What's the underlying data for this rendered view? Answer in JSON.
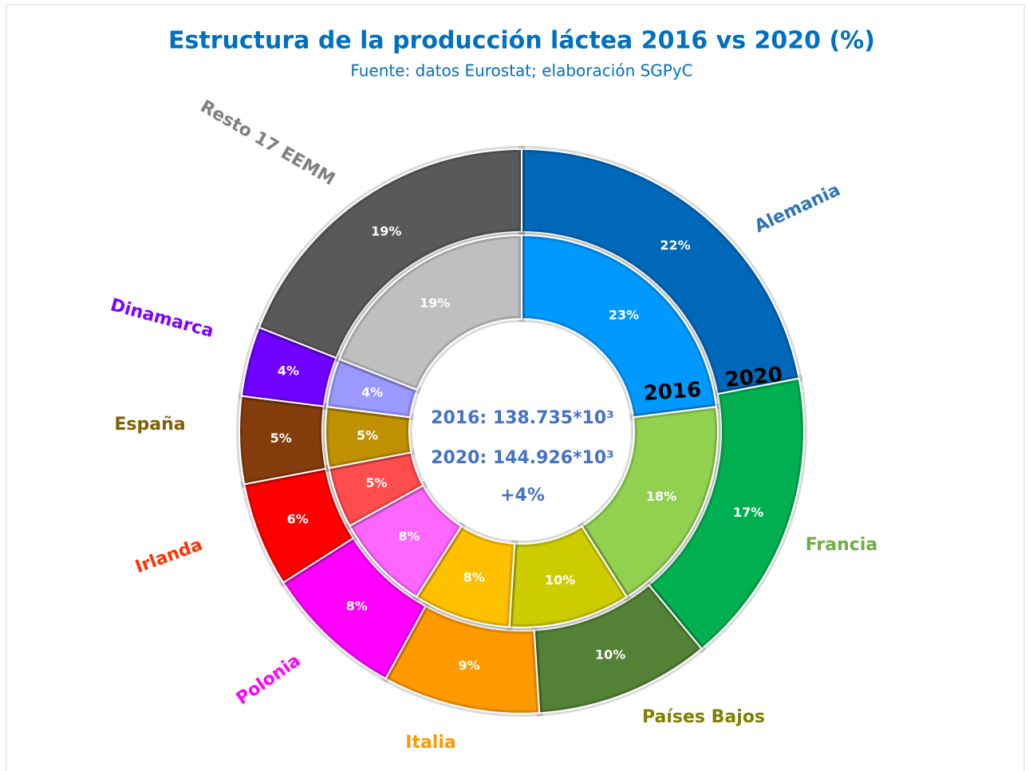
{
  "chart_data": {
    "type": "doughnut",
    "title": "Estructura de la producción láctea 2016 vs 2020 (%)",
    "subtitle": "Fuente: datos Eurostat; elaboración SGPyC",
    "categories": [
      "Alemania",
      "Francia",
      "Países Bajos",
      "Italia",
      "Polonia",
      "Irlanda",
      "España",
      "Dinamarca",
      "Resto 17 EEMM"
    ],
    "category_colors": [
      "#2e75b6",
      "#70ad47",
      "#7f7f00",
      "#ff9900",
      "#ff00ff",
      "#ff3300",
      "#806000",
      "#7f00ff",
      "#808080"
    ],
    "series": [
      {
        "name": "2020",
        "values": [
          22,
          17,
          10,
          9,
          8,
          6,
          5,
          4,
          19
        ],
        "value_labels": [
          "22%",
          "17%",
          "10%",
          "9%",
          "8%",
          "6%",
          "5%",
          "4%",
          "19%"
        ],
        "colors": [
          "#0068b8",
          "#00b050",
          "#538135",
          "#ff9900",
          "#ff00ff",
          "#ff0000",
          "#843c0c",
          "#7000ff",
          "#595959"
        ]
      },
      {
        "name": "2016",
        "values": [
          23,
          18,
          10,
          8,
          8,
          5,
          5,
          4,
          19
        ],
        "value_labels": [
          "23%",
          "18%",
          "10%",
          "8%",
          "8%",
          "5%",
          "5%",
          "4%",
          "19%"
        ],
        "colors": [
          "#0099ff",
          "#92d050",
          "#cccc00",
          "#ffc000",
          "#ff66ff",
          "#ff4d4d",
          "#bf9000",
          "#9999ff",
          "#bfbfbf"
        ]
      }
    ],
    "annotations": [
      "2016: 138.735*10³",
      "2020: 144.926*10³",
      "+4%"
    ]
  }
}
